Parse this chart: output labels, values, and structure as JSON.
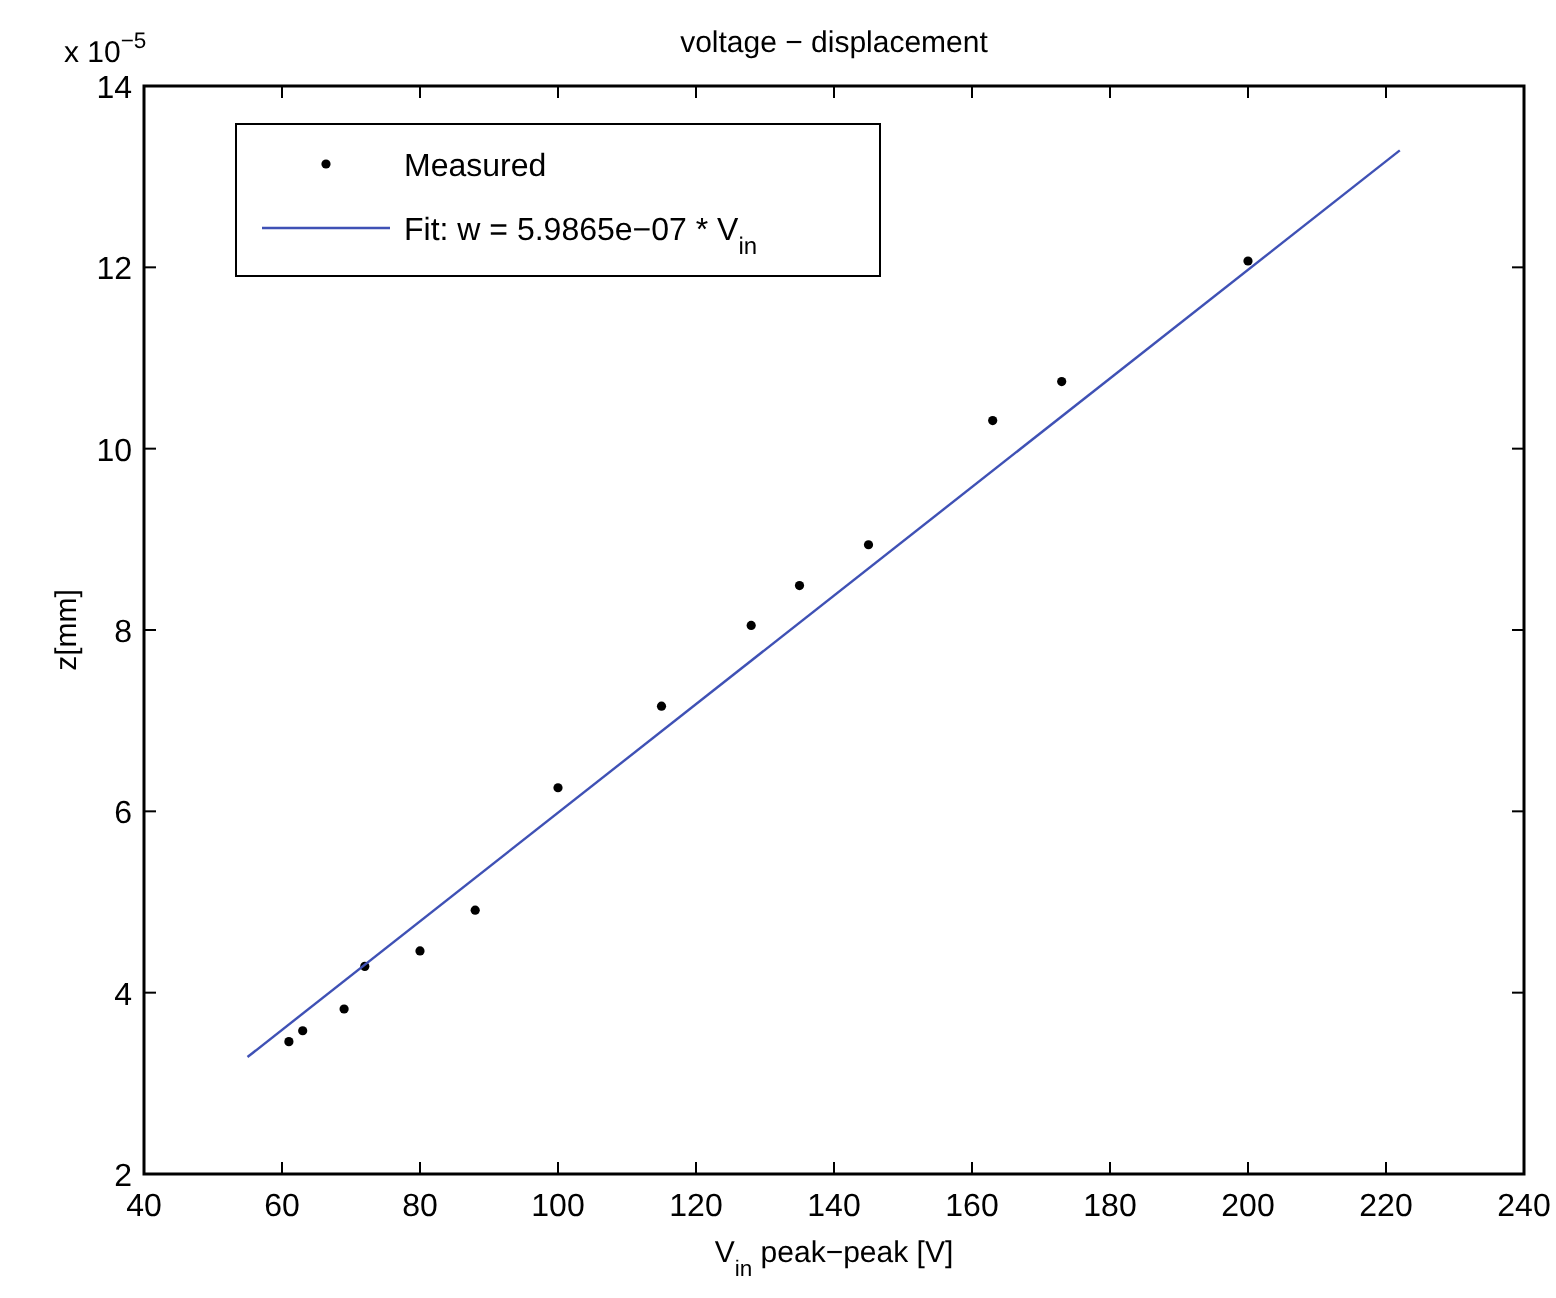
{
  "chart_data": {
    "type": "scatter",
    "title": "voltage − displacement",
    "xlabel": "V$_{in}$ peak−peak [V]",
    "ylabel": "z[mm]",
    "annotations": [
      "x 10$^{−5}$"
    ],
    "xlim": [
      40,
      240
    ],
    "xticks": [
      40,
      60,
      80,
      100,
      120,
      140,
      160,
      180,
      200,
      220,
      240
    ],
    "ylim": [
      2,
      14
    ],
    "yticks": [
      2,
      4,
      6,
      8,
      10,
      12,
      14
    ],
    "grid": false,
    "legend": "top left",
    "series": [
      {
        "name": "Measured",
        "marker": "circle",
        "color": "#000000",
        "x": [
          61,
          63,
          69,
          72,
          80,
          88,
          100,
          115,
          128,
          135,
          145,
          163,
          173,
          200
        ],
        "values": [
          3.46,
          3.58,
          3.82,
          4.29,
          4.46,
          4.91,
          6.26,
          7.16,
          8.05,
          8.49,
          8.94,
          10.31,
          10.74,
          12.07
        ]
      },
      {
        "name": "Fit: w = 5.9865e−07 * V$_{in}$",
        "type": "line",
        "marker": "none",
        "line_style": "solid",
        "color": "#3f51b5",
        "x": [
          55,
          222
        ],
        "values": [
          3.29,
          13.29
        ]
      }
    ]
  }
}
